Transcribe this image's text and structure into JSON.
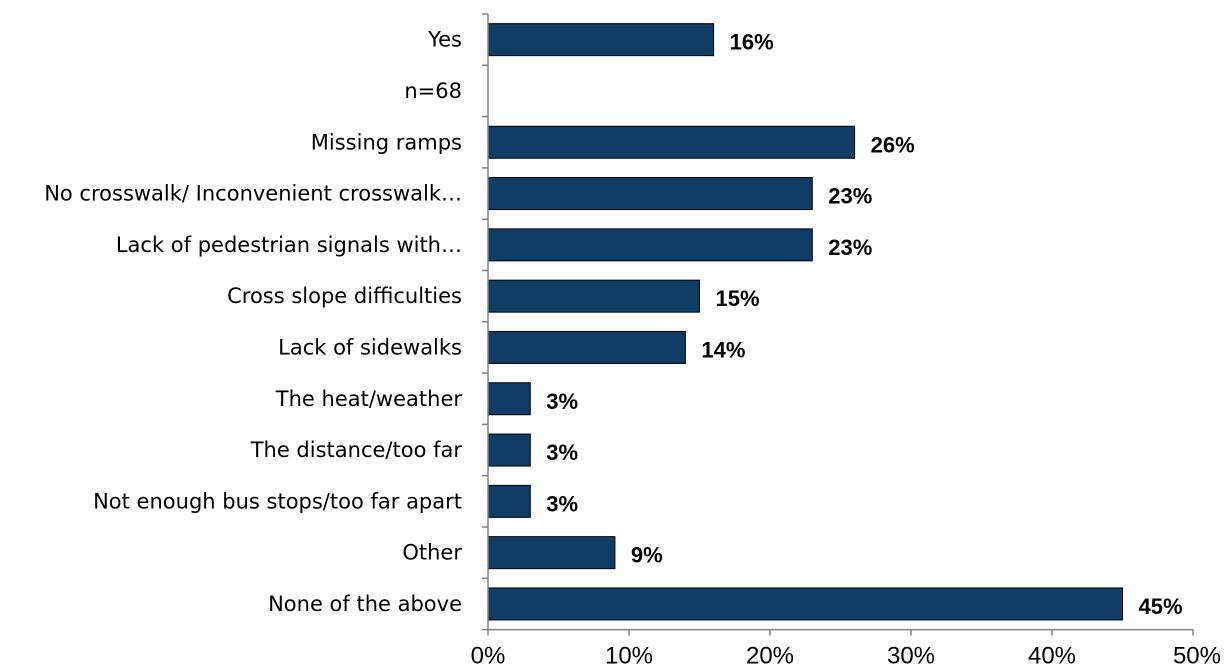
{
  "chart_data": {
    "type": "bar",
    "orientation": "horizontal",
    "categories": [
      "Yes",
      "n=68",
      "Missing ramps",
      "No crosswalk/ Inconvenient crosswalk…",
      "Lack of pedestrian signals with…",
      "Cross slope difficulties",
      "Lack of sidewalks",
      "The heat/weather",
      "The distance/too far",
      "Not enough bus stops/too far apart",
      "Other",
      "None of the above"
    ],
    "values": [
      16,
      null,
      26,
      23,
      23,
      15,
      14,
      3,
      3,
      3,
      9,
      45
    ],
    "value_labels": [
      "16%",
      "",
      "26%",
      "23%",
      "23%",
      "15%",
      "14%",
      "3%",
      "3%",
      "3%",
      "9%",
      "45%"
    ],
    "xlim": [
      0,
      50
    ],
    "x_ticks": [
      0,
      10,
      20,
      30,
      40,
      50
    ],
    "x_tick_labels": [
      "0%",
      "10%",
      "20%",
      "30%",
      "40%",
      "50%"
    ],
    "title": "",
    "xlabel": "",
    "ylabel": "",
    "grid": false,
    "legend": "none",
    "colors": {
      "bar": "#0F3D66",
      "bar_border": "#000000",
      "axis": "#808080"
    }
  }
}
